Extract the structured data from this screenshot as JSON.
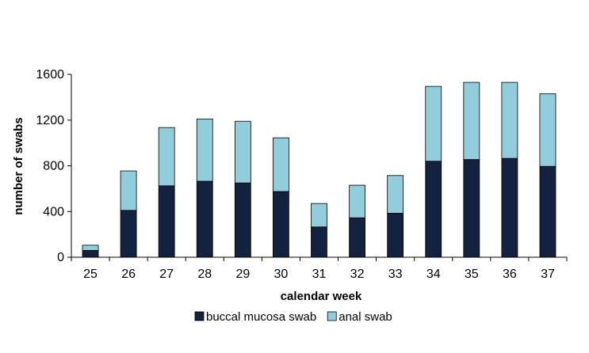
{
  "colors": {
    "background": "#ffffff",
    "series_bottom": "#13233f",
    "series_top": "#92cddc",
    "bar_outline": "#000000",
    "axis": "#000000"
  },
  "chart_data": {
    "type": "bar",
    "stacked": true,
    "categories": [
      "25",
      "26",
      "27",
      "28",
      "29",
      "30",
      "31",
      "32",
      "33",
      "34",
      "35",
      "36",
      "37"
    ],
    "series": [
      {
        "name": "buccal mucosa swab",
        "color": "#13233f",
        "values": [
          60,
          410,
          625,
          665,
          650,
          575,
          265,
          345,
          385,
          840,
          855,
          865,
          795
        ]
      },
      {
        "name": "anal swab",
        "color": "#92cddc",
        "values": [
          45,
          345,
          510,
          545,
          540,
          470,
          205,
          285,
          330,
          655,
          675,
          665,
          635
        ]
      }
    ],
    "xlabel": "calendar week",
    "ylabel": "number of swabs",
    "ylim": [
      0,
      1600
    ],
    "yticks": [
      "0",
      "400",
      "800",
      "1200",
      "1600"
    ],
    "grid": false,
    "legend": "bottom"
  }
}
